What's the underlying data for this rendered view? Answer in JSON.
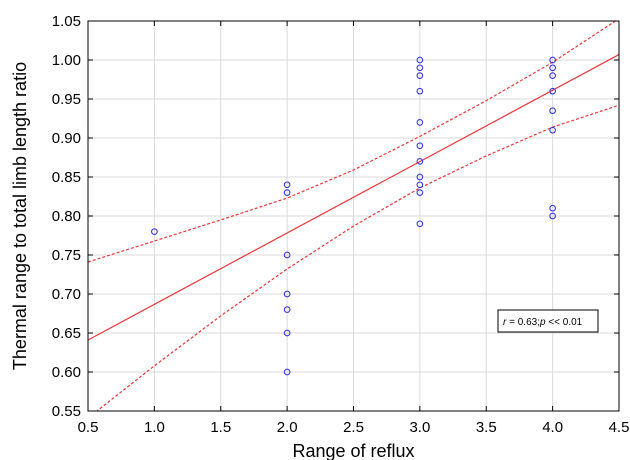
{
  "chart_data": {
    "type": "scatter",
    "xlabel": "Range of reflux",
    "ylabel": "Thermal range to total limb length ratio",
    "xlim": [
      0.5,
      4.5
    ],
    "ylim": [
      0.55,
      1.05
    ],
    "x_ticks": [
      "0.5",
      "1.0",
      "1.5",
      "2.0",
      "2.5",
      "3.0",
      "3.5",
      "4.0",
      "4.5"
    ],
    "y_ticks": [
      "0.55",
      "0.60",
      "0.65",
      "0.70",
      "0.75",
      "0.80",
      "0.85",
      "0.90",
      "0.95",
      "1.00",
      "1.05"
    ],
    "grid": true,
    "points": [
      {
        "x": 1.0,
        "y": 0.78
      },
      {
        "x": 2.0,
        "y": 0.84
      },
      {
        "x": 2.0,
        "y": 0.83
      },
      {
        "x": 2.0,
        "y": 0.75
      },
      {
        "x": 2.0,
        "y": 0.7
      },
      {
        "x": 2.0,
        "y": 0.68
      },
      {
        "x": 2.0,
        "y": 0.65
      },
      {
        "x": 2.0,
        "y": 0.6
      },
      {
        "x": 3.0,
        "y": 1.0
      },
      {
        "x": 3.0,
        "y": 0.99
      },
      {
        "x": 3.0,
        "y": 0.98
      },
      {
        "x": 3.0,
        "y": 0.96
      },
      {
        "x": 3.0,
        "y": 0.92
      },
      {
        "x": 3.0,
        "y": 0.89
      },
      {
        "x": 3.0,
        "y": 0.87
      },
      {
        "x": 3.0,
        "y": 0.85
      },
      {
        "x": 3.0,
        "y": 0.84
      },
      {
        "x": 3.0,
        "y": 0.83
      },
      {
        "x": 3.0,
        "y": 0.79
      },
      {
        "x": 4.0,
        "y": 1.0
      },
      {
        "x": 4.0,
        "y": 0.99
      },
      {
        "x": 4.0,
        "y": 0.98
      },
      {
        "x": 4.0,
        "y": 0.96
      },
      {
        "x": 4.0,
        "y": 0.935
      },
      {
        "x": 4.0,
        "y": 0.91
      },
      {
        "x": 4.0,
        "y": 0.81
      },
      {
        "x": 4.0,
        "y": 0.8
      }
    ],
    "regression_line": {
      "x": [
        0.5,
        4.5
      ],
      "y": [
        0.641,
        1.007
      ]
    },
    "confidence_upper": {
      "x": [
        0.5,
        1.0,
        1.5,
        2.0,
        2.5,
        3.0,
        3.5,
        4.0,
        4.5
      ],
      "y": [
        0.741,
        0.768,
        0.795,
        0.823,
        0.859,
        0.902,
        0.948,
        0.997,
        1.053
      ]
    },
    "confidence_lower": {
      "x": [
        0.5,
        1.0,
        1.5,
        2.0,
        2.5,
        3.0,
        3.5,
        4.0,
        4.5
      ],
      "y": [
        0.541,
        0.608,
        0.672,
        0.732,
        0.787,
        0.836,
        0.877,
        0.914,
        0.942
      ]
    },
    "annotation": {
      "r_label": "r",
      "r_text": " = 0.63;",
      "p_label": "p",
      "p_text": " << 0.01"
    },
    "colors": {
      "points": "#3b3bd6",
      "regression": "#e8383b",
      "confidence": "#e8383b",
      "grid": "#d9d9d9",
      "axis": "#000000"
    }
  }
}
